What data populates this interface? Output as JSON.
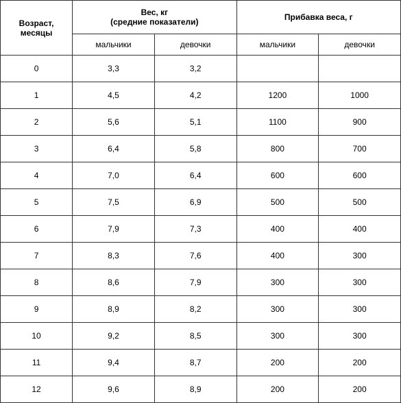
{
  "table": {
    "type": "table",
    "background_color": "#ffffff",
    "border_color": "#333333",
    "font_family": "Verdana",
    "header_fontsize": 12,
    "cell_fontsize": 12,
    "text_color": "#000000",
    "headers": {
      "age": "Возраст, месяцы",
      "weight_group": "Вес, кг\n(средние показатели)",
      "weight_group_line1": "Вес, кг",
      "weight_group_line2": "(средние показатели)",
      "gain_group": "Прибавка веса, г",
      "boys": "мальчики",
      "girls": "девочки"
    },
    "columns": [
      "age",
      "weight_boys",
      "weight_girls",
      "gain_boys",
      "gain_girls"
    ],
    "rows": [
      {
        "age": "0",
        "weight_boys": "3,3",
        "weight_girls": "3,2",
        "gain_boys": "",
        "gain_girls": ""
      },
      {
        "age": "1",
        "weight_boys": "4,5",
        "weight_girls": "4,2",
        "gain_boys": "1200",
        "gain_girls": "1000"
      },
      {
        "age": "2",
        "weight_boys": "5,6",
        "weight_girls": "5,1",
        "gain_boys": "1100",
        "gain_girls": "900"
      },
      {
        "age": "3",
        "weight_boys": "6,4",
        "weight_girls": "5,8",
        "gain_boys": "800",
        "gain_girls": "700"
      },
      {
        "age": "4",
        "weight_boys": "7,0",
        "weight_girls": "6,4",
        "gain_boys": "600",
        "gain_girls": "600"
      },
      {
        "age": "5",
        "weight_boys": "7,5",
        "weight_girls": "6,9",
        "gain_boys": "500",
        "gain_girls": "500"
      },
      {
        "age": "6",
        "weight_boys": "7,9",
        "weight_girls": "7,3",
        "gain_boys": "400",
        "gain_girls": "400"
      },
      {
        "age": "7",
        "weight_boys": "8,3",
        "weight_girls": "7,6",
        "gain_boys": "400",
        "gain_girls": "300"
      },
      {
        "age": "8",
        "weight_boys": "8,6",
        "weight_girls": "7,9",
        "gain_boys": "300",
        "gain_girls": "300"
      },
      {
        "age": "9",
        "weight_boys": "8,9",
        "weight_girls": "8,2",
        "gain_boys": "300",
        "gain_girls": "300"
      },
      {
        "age": "10",
        "weight_boys": "9,2",
        "weight_girls": "8,5",
        "gain_boys": "300",
        "gain_girls": "300"
      },
      {
        "age": "11",
        "weight_boys": "9,4",
        "weight_girls": "8,7",
        "gain_boys": "200",
        "gain_girls": "200"
      },
      {
        "age": "12",
        "weight_boys": "9,6",
        "weight_girls": "8,9",
        "gain_boys": "200",
        "gain_girls": "200"
      }
    ]
  }
}
